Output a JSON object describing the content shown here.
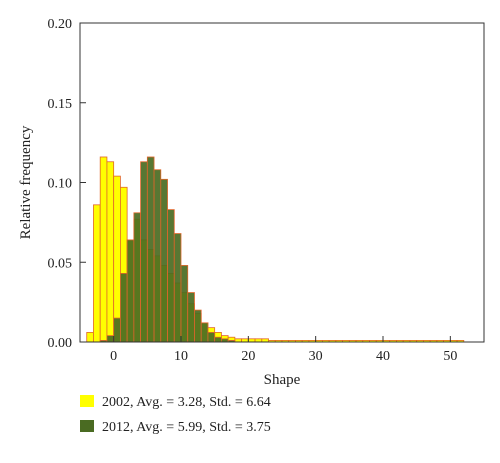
{
  "chart_data": {
    "type": "bar",
    "xlabel": "Shape",
    "ylabel": "Relative frequency",
    "xlim": [
      -5,
      55
    ],
    "ylim": [
      0,
      0.2
    ],
    "x_ticks": [
      0,
      10,
      20,
      30,
      40,
      50
    ],
    "y_ticks": [
      0.0,
      0.05,
      0.1,
      0.15,
      0.2
    ],
    "x_tick_labels": [
      "0",
      "10",
      "20",
      "30",
      "40",
      "50"
    ],
    "y_tick_labels": [
      "0.00",
      "0.05",
      "0.10",
      "0.15",
      "0.20"
    ],
    "bin_width": 1,
    "bin_starts": [
      -4,
      -3,
      -2,
      -1,
      0,
      1,
      2,
      3,
      4,
      5,
      6,
      7,
      8,
      9,
      10,
      11,
      12,
      13,
      14,
      15,
      16,
      17,
      18,
      19,
      20,
      21,
      22,
      23,
      24,
      25,
      26,
      27,
      28,
      29,
      30,
      31,
      32,
      33,
      34,
      35,
      36,
      37,
      38,
      39,
      40,
      41,
      42,
      43,
      44,
      45,
      46,
      47,
      48,
      49,
      50,
      51
    ],
    "grid": false,
    "legend_position": "bottom",
    "series": [
      {
        "name": "2002, Avg. = 3.28, Std. = 6.64",
        "color": "#ffff00",
        "values": [
          0.006,
          0.086,
          0.116,
          0.113,
          0.104,
          0.097,
          0.064,
          0.077,
          0.064,
          0.058,
          0.054,
          0.048,
          0.043,
          0.037,
          0.031,
          0.024,
          0.018,
          0.012,
          0.009,
          0.006,
          0.004,
          0.003,
          0.002,
          0.002,
          0.002,
          0.002,
          0.002,
          0.001,
          0.001,
          0.001,
          0.001,
          0.001,
          0.001,
          0.001,
          0.001,
          0.001,
          0.001,
          0.001,
          0.001,
          0.001,
          0.001,
          0.001,
          0.001,
          0.001,
          0.001,
          0.001,
          0.001,
          0.001,
          0.001,
          0.001,
          0.001,
          0.001,
          0.001,
          0.001,
          0.001,
          0.001
        ]
      },
      {
        "name": "2012, Avg. = 5.99, Std. = 3.75",
        "color": "#4a6b22",
        "values": [
          0.0,
          0.0,
          0.001,
          0.004,
          0.015,
          0.043,
          0.064,
          0.081,
          0.113,
          0.116,
          0.108,
          0.102,
          0.083,
          0.068,
          0.048,
          0.031,
          0.02,
          0.012,
          0.006,
          0.003,
          0.002,
          0.001,
          0.0,
          0.0,
          0.0,
          0.0,
          0.0,
          0.0,
          0.0,
          0.0,
          0.0,
          0.0,
          0.0,
          0.0,
          0.0,
          0.0,
          0.0,
          0.0,
          0.0,
          0.0,
          0.0,
          0.0,
          0.0,
          0.0,
          0.0,
          0.0,
          0.0,
          0.0,
          0.0,
          0.0,
          0.0,
          0.0,
          0.0,
          0.0,
          0.0,
          0.0
        ]
      }
    ]
  }
}
